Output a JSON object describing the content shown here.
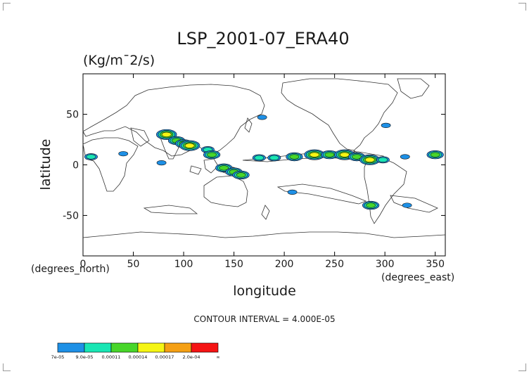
{
  "chart_data": {
    "type": "heatmap",
    "title": "LSP_2001-07_ERA40",
    "units": "(Kg/m¯2/s)",
    "xlabel": "longitude",
    "ylabel": "latitude",
    "x_unit_label": "(degrees_east)",
    "y_unit_label": "(degrees_north)",
    "xlim": [
      0,
      360
    ],
    "ylim": [
      -90,
      90
    ],
    "x_ticks": [
      0,
      50,
      100,
      150,
      200,
      250,
      300,
      350
    ],
    "y_ticks": [
      -50,
      0,
      50
    ],
    "contour_interval_text": "CONTOUR INTERVAL = 4.000E-05",
    "colorbar": {
      "labels": [
        "7e-05",
        "9.0e-05",
        "0.00011",
        "0.00014",
        "0.00017",
        "2.0e-04",
        "∞"
      ],
      "colors": [
        "#1e90e6",
        "#19e6b4",
        "#48d62a",
        "#f5f514",
        "#f5a014",
        "#f51414"
      ]
    },
    "blobs": [
      {
        "lon": 178,
        "lat": 47,
        "intensity": 1
      },
      {
        "lon": 301,
        "lat": 39,
        "intensity": 1
      },
      {
        "lon": 83,
        "lat": 30,
        "intensity": 4
      },
      {
        "lon": 93,
        "lat": 24,
        "intensity": 3
      },
      {
        "lon": 100,
        "lat": 21,
        "intensity": 3
      },
      {
        "lon": 106,
        "lat": 19,
        "intensity": 4
      },
      {
        "lon": 124,
        "lat": 15,
        "intensity": 2
      },
      {
        "lon": 128,
        "lat": 10,
        "intensity": 3
      },
      {
        "lon": 8,
        "lat": 8,
        "intensity": 2
      },
      {
        "lon": 40,
        "lat": 11,
        "intensity": 1
      },
      {
        "lon": 175,
        "lat": 7,
        "intensity": 2
      },
      {
        "lon": 190,
        "lat": 7,
        "intensity": 2
      },
      {
        "lon": 210,
        "lat": 8,
        "intensity": 3
      },
      {
        "lon": 230,
        "lat": 10,
        "intensity": 4
      },
      {
        "lon": 245,
        "lat": 10,
        "intensity": 3
      },
      {
        "lon": 260,
        "lat": 10,
        "intensity": 4
      },
      {
        "lon": 272,
        "lat": 8,
        "intensity": 3
      },
      {
        "lon": 285,
        "lat": 5,
        "intensity": 4
      },
      {
        "lon": 298,
        "lat": 5,
        "intensity": 2
      },
      {
        "lon": 350,
        "lat": 10,
        "intensity": 3
      },
      {
        "lon": 320,
        "lat": 8,
        "intensity": 1
      },
      {
        "lon": 140,
        "lat": -3,
        "intensity": 3
      },
      {
        "lon": 150,
        "lat": -7,
        "intensity": 3
      },
      {
        "lon": 157,
        "lat": -10,
        "intensity": 3
      },
      {
        "lon": 78,
        "lat": 2,
        "intensity": 1
      },
      {
        "lon": 208,
        "lat": -27,
        "intensity": 1
      },
      {
        "lon": 286,
        "lat": -40,
        "intensity": 3
      },
      {
        "lon": 322,
        "lat": -40,
        "intensity": 1
      }
    ]
  }
}
